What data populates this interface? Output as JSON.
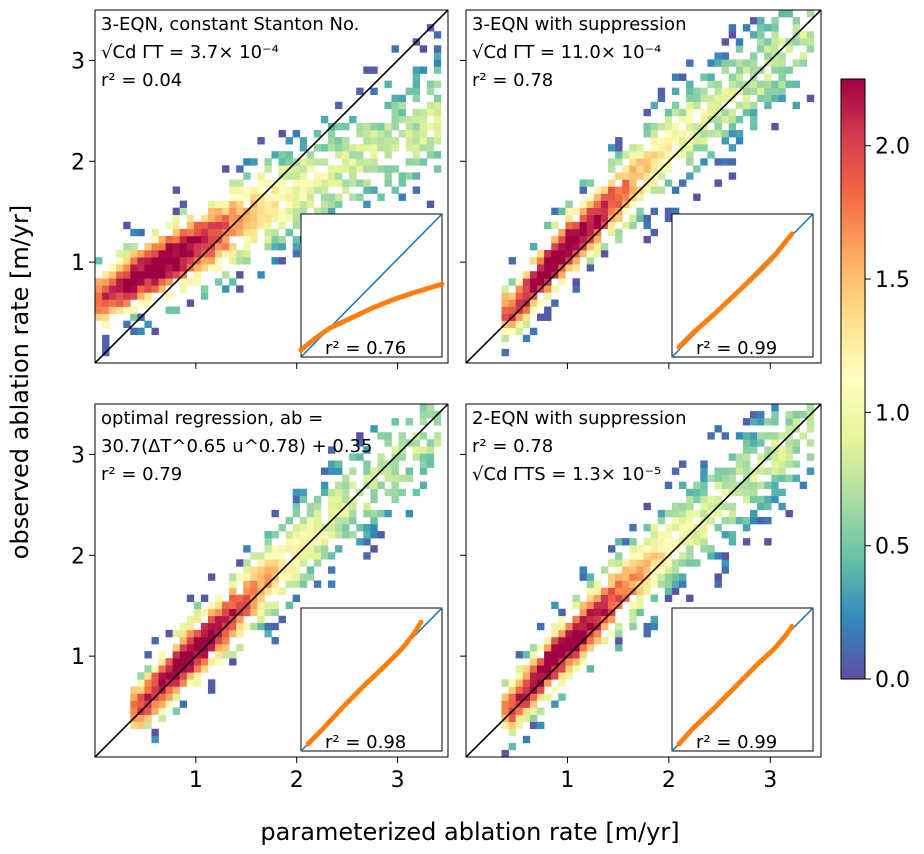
{
  "figure": {
    "xlabel": "parameterized ablation rate [m/yr]",
    "ylabel": "observed ablation rate [m/yr]"
  },
  "colorbar": {
    "ticks": [
      "0.0",
      "0.5",
      "1.0",
      "1.5",
      "2.0"
    ],
    "tick_values": [
      0.0,
      0.5,
      1.0,
      1.5,
      2.0
    ],
    "vmin": 0.0,
    "vmax": 2.25,
    "colormap": "Spectral_r",
    "colors": [
      "#5e4fa2",
      "#3288bd",
      "#66c2a5",
      "#abdda4",
      "#e6f598",
      "#ffffbf",
      "#fee08b",
      "#fdae61",
      "#f46d43",
      "#d53e4f",
      "#9e0142"
    ]
  },
  "chart_data": [
    {
      "type": "heatmap",
      "panel": "top-left",
      "annotation_lines": [
        "3-EQN, constant Stanton No.",
        "√Cd ΓT =  3.7× 10⁻⁴",
        "r² =  0.04"
      ],
      "xlim": [
        0,
        3.5
      ],
      "ylim": [
        0,
        3.5
      ],
      "xticks": [
        "1",
        "2",
        "3"
      ],
      "yticks": [
        "1",
        "2",
        "3"
      ],
      "show_xtick_labels": false,
      "show_ytick_labels": true,
      "one_to_one_line": true,
      "density_ridge": {
        "x": [
          0.1,
          0.5,
          1.0,
          1.5,
          2.0,
          2.5,
          3.0,
          3.4
        ],
        "y": [
          0.65,
          0.9,
          1.15,
          1.45,
          1.7,
          1.95,
          2.2,
          2.4
        ]
      },
      "spread": 0.22,
      "inset": {
        "label": "r² =  0.76",
        "qq_x": [
          0.0,
          0.1,
          0.2,
          0.35,
          0.5,
          0.65,
          0.8,
          0.9,
          1.0
        ],
        "qq_y": [
          0.05,
          0.13,
          0.2,
          0.27,
          0.34,
          0.4,
          0.45,
          0.48,
          0.51
        ]
      }
    },
    {
      "type": "heatmap",
      "panel": "top-right",
      "annotation_lines": [
        "3-EQN with suppression",
        "√Cd ΓT =  11.0× 10⁻⁴",
        "r² =  0.78"
      ],
      "xlim": [
        0,
        3.5
      ],
      "ylim": [
        0,
        3.5
      ],
      "xticks": [
        "1",
        "2",
        "3"
      ],
      "yticks": [
        "1",
        "2",
        "3"
      ],
      "show_xtick_labels": false,
      "show_ytick_labels": false,
      "one_to_one_line": true,
      "density_ridge": {
        "x": [
          0.45,
          0.8,
          1.2,
          1.6,
          2.0,
          2.5,
          3.0,
          3.4
        ],
        "y": [
          0.5,
          0.95,
          1.35,
          1.75,
          2.15,
          2.55,
          2.95,
          3.3
        ]
      },
      "spread": 0.2,
      "inset": {
        "label": "r² =  0.99",
        "qq_x": [
          0.05,
          0.15,
          0.3,
          0.45,
          0.6,
          0.72,
          0.8,
          0.85
        ],
        "qq_y": [
          0.07,
          0.17,
          0.3,
          0.44,
          0.58,
          0.7,
          0.8,
          0.86
        ]
      }
    },
    {
      "type": "heatmap",
      "panel": "bottom-left",
      "annotation_lines": [
        "optimal regression, ab =",
        "30.7(ΔT^0.65 u^0.78) + 0.35",
        "r² =  0.79"
      ],
      "xlim": [
        0,
        3.5
      ],
      "ylim": [
        0,
        3.5
      ],
      "xticks": [
        "1",
        "2",
        "3"
      ],
      "yticks": [
        "1",
        "2",
        "3"
      ],
      "show_xtick_labels": true,
      "show_ytick_labels": true,
      "one_to_one_line": true,
      "density_ridge": {
        "x": [
          0.45,
          0.8,
          1.2,
          1.6,
          2.0,
          2.5,
          3.0,
          3.4
        ],
        "y": [
          0.5,
          0.88,
          1.25,
          1.65,
          2.05,
          2.5,
          2.95,
          3.35
        ]
      },
      "spread": 0.2,
      "inset": {
        "label": "r² =  0.98",
        "qq_x": [
          0.05,
          0.15,
          0.3,
          0.45,
          0.6,
          0.72,
          0.8,
          0.85
        ],
        "qq_y": [
          0.05,
          0.15,
          0.31,
          0.46,
          0.6,
          0.72,
          0.82,
          0.9
        ]
      }
    },
    {
      "type": "heatmap",
      "panel": "bottom-right",
      "annotation_lines": [
        "2-EQN with suppression",
        "r² =  0.78",
        "√Cd ΓTS =  1.3× 10⁻⁵"
      ],
      "xlim": [
        0,
        3.5
      ],
      "ylim": [
        0,
        3.5
      ],
      "xticks": [
        "1",
        "2",
        "3"
      ],
      "yticks": [
        "1",
        "2",
        "3"
      ],
      "show_xtick_labels": true,
      "show_ytick_labels": false,
      "one_to_one_line": true,
      "density_ridge": {
        "x": [
          0.45,
          0.8,
          1.2,
          1.6,
          2.0,
          2.5,
          3.0,
          3.4
        ],
        "y": [
          0.48,
          0.9,
          1.3,
          1.7,
          2.1,
          2.5,
          2.95,
          3.35
        ]
      },
      "spread": 0.2,
      "inset": {
        "label": "r² =  0.99",
        "qq_x": [
          0.05,
          0.15,
          0.3,
          0.45,
          0.6,
          0.72,
          0.8,
          0.85
        ],
        "qq_y": [
          0.05,
          0.16,
          0.3,
          0.45,
          0.6,
          0.71,
          0.8,
          0.87
        ]
      }
    }
  ]
}
